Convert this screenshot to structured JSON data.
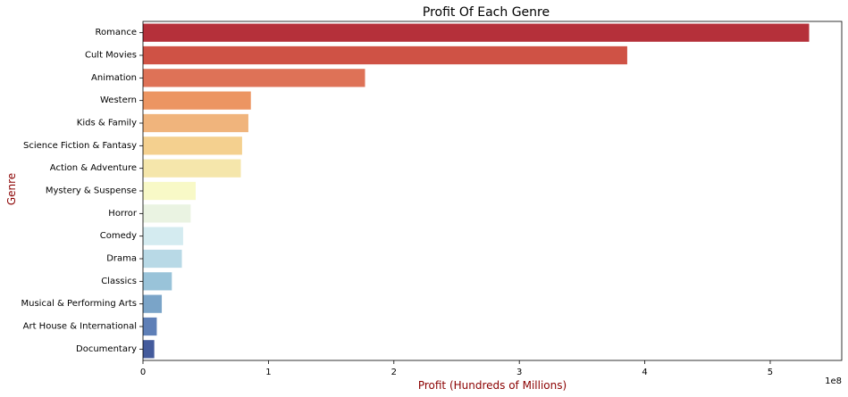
{
  "chart_data": {
    "type": "bar",
    "orientation": "horizontal",
    "title": "Profit Of Each Genre",
    "xlabel": "Profit (Hundreds of Millions)",
    "ylabel": "Genre",
    "axis_label_color": "#8b0000",
    "x_offset_label": "1e8",
    "x_scale": 100000000,
    "xlim": [
      0,
      5.57
    ],
    "xticks": [
      0,
      1,
      2,
      3,
      4,
      5
    ],
    "categories": [
      "Romance",
      "Cult Movies",
      "Animation",
      "Western",
      "Kids & Family",
      "Science Fiction & Fantasy",
      "Action & Adventure",
      "Mystery & Suspense",
      "Horror",
      "Comedy",
      "Drama",
      "Classics",
      "Musical & Performing Arts",
      "Art House & International",
      "Documentary"
    ],
    "values": [
      5.31,
      3.86,
      1.77,
      0.86,
      0.84,
      0.79,
      0.78,
      0.42,
      0.38,
      0.32,
      0.31,
      0.23,
      0.15,
      0.11,
      0.09
    ],
    "colors": [
      "#b5303a",
      "#cf5245",
      "#de7257",
      "#ec9562",
      "#f0b47c",
      "#f4d08f",
      "#f5e6ab",
      "#f8f9c7",
      "#eaf3e2",
      "#d4ebf0",
      "#b8d9e6",
      "#99c3d9",
      "#7aa4c8",
      "#5e7fb7",
      "#445b9c"
    ],
    "grid": false,
    "legend": "none"
  }
}
